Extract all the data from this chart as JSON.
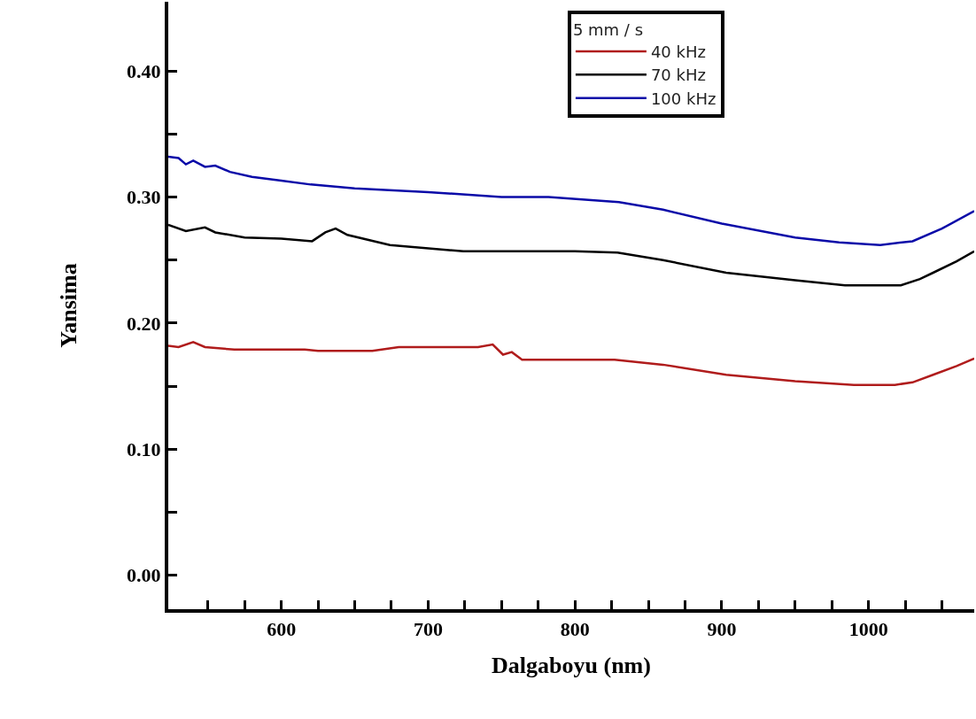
{
  "chart_data": {
    "type": "line",
    "xlabel": "Dalgaboyu (nm)",
    "ylabel": "Yansima",
    "legend_title": "5 mm / s",
    "legend": "top right",
    "grid": false,
    "marker": "none",
    "line_style": "solid",
    "xlim": [
      523,
      1072
    ],
    "ylim": [
      -0.027,
      0.455
    ],
    "xticks": [
      {
        "value": 550,
        "label": null
      },
      {
        "value": 575,
        "label": null
      },
      600,
      {
        "value": 625,
        "label": null
      },
      {
        "value": 650,
        "label": null
      },
      {
        "value": 675,
        "label": null
      },
      700,
      {
        "value": 725,
        "label": null
      },
      {
        "value": 750,
        "label": null
      },
      {
        "value": 775,
        "label": null
      },
      800,
      {
        "value": 825,
        "label": null
      },
      {
        "value": 850,
        "label": null
      },
      {
        "value": 875,
        "label": null
      },
      900,
      {
        "value": 925,
        "label": null
      },
      {
        "value": 950,
        "label": null
      },
      {
        "value": 975,
        "label": null
      },
      1000,
      {
        "value": 1025,
        "label": null
      },
      {
        "value": 1050,
        "label": null
      }
    ],
    "yticks": [
      {
        "value": 0,
        "label": "0.00"
      },
      {
        "value": 0.05,
        "label": null
      },
      {
        "value": 0.1,
        "label": "0.10"
      },
      {
        "value": 0.15,
        "label": null
      },
      {
        "value": 0.2,
        "label": "0.20"
      },
      {
        "value": 0.25,
        "label": null
      },
      {
        "value": 0.3,
        "label": "0.30"
      },
      {
        "value": 0.35,
        "label": null
      },
      {
        "value": 0.4,
        "label": "0.40"
      }
    ],
    "series": [
      {
        "name": "40 kHz",
        "color": "#b01c1c",
        "x": [
          523,
          530,
          540,
          548,
          568,
          616,
          625,
          662,
          680,
          734,
          744,
          751,
          757,
          764,
          800,
          827,
          860,
          903,
          950,
          990,
          1018,
          1030,
          1044,
          1060,
          1072
        ],
        "values": [
          0.182,
          0.181,
          0.185,
          0.181,
          0.179,
          0.179,
          0.178,
          0.178,
          0.181,
          0.181,
          0.183,
          0.175,
          0.177,
          0.171,
          0.171,
          0.171,
          0.167,
          0.159,
          0.154,
          0.151,
          0.151,
          0.153,
          0.159,
          0.166,
          0.172
        ]
      },
      {
        "name": "70 kHz",
        "color": "#000000",
        "x": [
          523,
          535,
          548,
          555,
          575,
          600,
          621,
          630,
          637,
          645,
          674,
          724,
          800,
          829,
          860,
          903,
          950,
          984,
          1022,
          1035,
          1044,
          1060,
          1072
        ],
        "values": [
          0.278,
          0.273,
          0.276,
          0.272,
          0.268,
          0.267,
          0.265,
          0.272,
          0.275,
          0.27,
          0.262,
          0.257,
          0.257,
          0.256,
          0.25,
          0.24,
          0.234,
          0.23,
          0.23,
          0.235,
          0.24,
          0.249,
          0.257
        ]
      },
      {
        "name": "100 kHz",
        "color": "#0a0aa8",
        "x": [
          523,
          530,
          535,
          540,
          548,
          555,
          565,
          580,
          600,
          620,
          650,
          700,
          750,
          782,
          830,
          860,
          900,
          950,
          980,
          1008,
          1030,
          1050,
          1072
        ],
        "values": [
          0.332,
          0.331,
          0.326,
          0.329,
          0.324,
          0.325,
          0.32,
          0.316,
          0.313,
          0.31,
          0.307,
          0.304,
          0.3,
          0.3,
          0.296,
          0.29,
          0.279,
          0.268,
          0.264,
          0.262,
          0.265,
          0.275,
          0.289
        ]
      }
    ]
  }
}
